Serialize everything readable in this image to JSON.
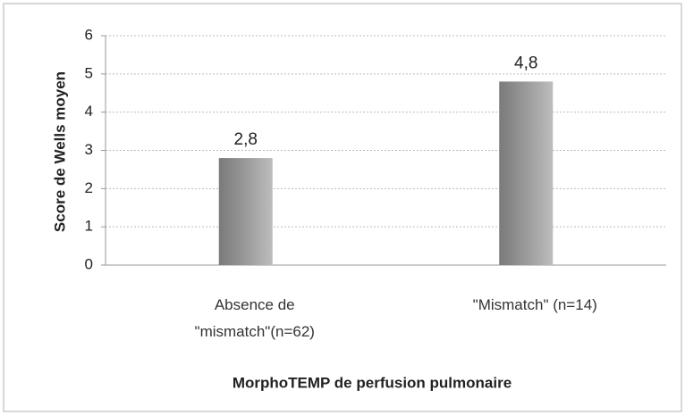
{
  "chart_data": {
    "type": "bar",
    "categories": [
      "Absence de \"mismatch\"(n=62)",
      "\"Mismatch\" (n=14)"
    ],
    "values": [
      2.8,
      4.8
    ],
    "value_labels": [
      "2,8",
      "4,8"
    ],
    "color": "#9a9a9a",
    "ylim": [
      0,
      6
    ],
    "yticks": [
      0,
      1,
      2,
      3,
      4,
      5,
      6
    ],
    "grid": true,
    "y_label": "Score de Wells moyen",
    "x_label": "MorphoTEMP de perfusion pulmonaire"
  }
}
